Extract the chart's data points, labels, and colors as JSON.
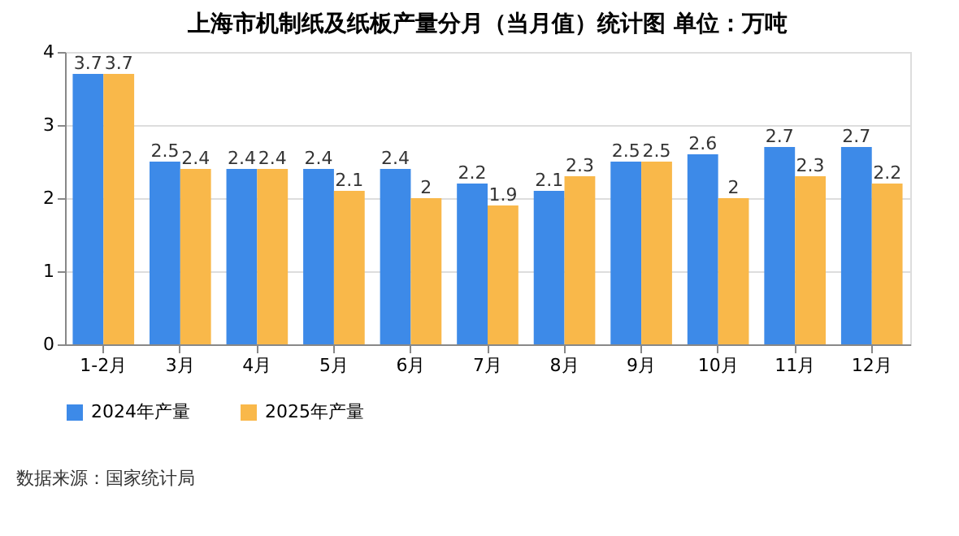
{
  "chart_data": {
    "type": "bar",
    "title": "上海市机制纸及纸板产量分月（当月值）统计图 单位：万吨",
    "categories": [
      "1-2月",
      "3月",
      "4月",
      "5月",
      "6月",
      "7月",
      "8月",
      "9月",
      "10月",
      "11月",
      "12月"
    ],
    "series": [
      {
        "name": "2024年产量",
        "color": "#3d8ae8",
        "values": [
          3.7,
          2.5,
          2.4,
          2.4,
          2.4,
          2.2,
          2.1,
          2.5,
          2.6,
          2.7,
          2.7
        ]
      },
      {
        "name": "2025年产量",
        "color": "#f9b84a",
        "values": [
          3.7,
          2.4,
          2.4,
          2.1,
          2,
          1.9,
          2.3,
          2.5,
          2,
          2.3,
          2.2
        ]
      }
    ],
    "ylim": [
      0,
      4
    ],
    "yticks": [
      0,
      1,
      2,
      3,
      4
    ],
    "grid": "y",
    "legend": "bottom",
    "data_labels": true,
    "annotations": [
      "数据来源：国家统计局"
    ]
  }
}
